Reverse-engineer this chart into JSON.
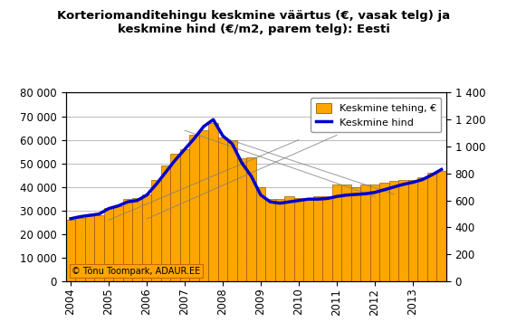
{
  "title": "Korteriomanditehingu keskmine väärtus (€, vasak telg) ja\nkeskmine hind (€/m2, parem telg): Eesti",
  "bar_label": "Keskmine tehing, €",
  "line_label": "Keskmine hind",
  "bar_color": "#FFA500",
  "bar_edge_color": "#7B4A00",
  "line_color": "#0000CC",
  "line_width": 2.5,
  "watermark": "© Tõnu Toompark, ADAUR.EE",
  "ylim_left": [
    0,
    80000
  ],
  "ylim_right": [
    0,
    1400
  ],
  "yticks_left": [
    0,
    10000,
    20000,
    30000,
    40000,
    50000,
    60000,
    70000,
    80000
  ],
  "yticks_right": [
    0,
    200,
    400,
    600,
    800,
    1000,
    1200,
    1400
  ],
  "bar_values": [
    26000,
    27000,
    27500,
    28000,
    31000,
    32000,
    35000,
    35500,
    37000,
    43000,
    49000,
    54000,
    56000,
    62000,
    64000,
    67000,
    61000,
    60000,
    52000,
    52500,
    40000,
    35000,
    35000,
    36000,
    35500,
    35500,
    36000,
    36000,
    41000,
    41000,
    40000,
    41000,
    41000,
    42000,
    42500,
    43000,
    43000,
    44000,
    46000,
    47000
  ],
  "line_values": [
    465,
    480,
    490,
    500,
    540,
    560,
    590,
    600,
    640,
    720,
    810,
    900,
    980,
    1060,
    1150,
    1200,
    1080,
    1020,
    880,
    780,
    640,
    590,
    580,
    590,
    600,
    610,
    610,
    615,
    630,
    640,
    645,
    650,
    660,
    680,
    700,
    720,
    735,
    755,
    790,
    830
  ],
  "xtick_positions": [
    0,
    4,
    8,
    12,
    16,
    20,
    24,
    28,
    32,
    36
  ],
  "xtick_labels": [
    "2004",
    "2005",
    "2006",
    "2007",
    "2008",
    "2009",
    "2010",
    "2011",
    "2012",
    "2013"
  ],
  "background_color": "#FFFFFF",
  "grid_color": "#C0C0C0",
  "title_fontsize": 9.5,
  "tick_fontsize": 8.5,
  "trend_lines": [
    {
      "x": [
        4,
        24
      ],
      "y": [
        26000,
        60000
      ]
    },
    {
      "x": [
        8,
        28
      ],
      "y": [
        26500,
        62000
      ]
    },
    {
      "x": [
        12,
        32
      ],
      "y": [
        64000,
        36000
      ]
    },
    {
      "x": [
        16,
        34
      ],
      "y": [
        61000,
        37000
      ]
    }
  ]
}
